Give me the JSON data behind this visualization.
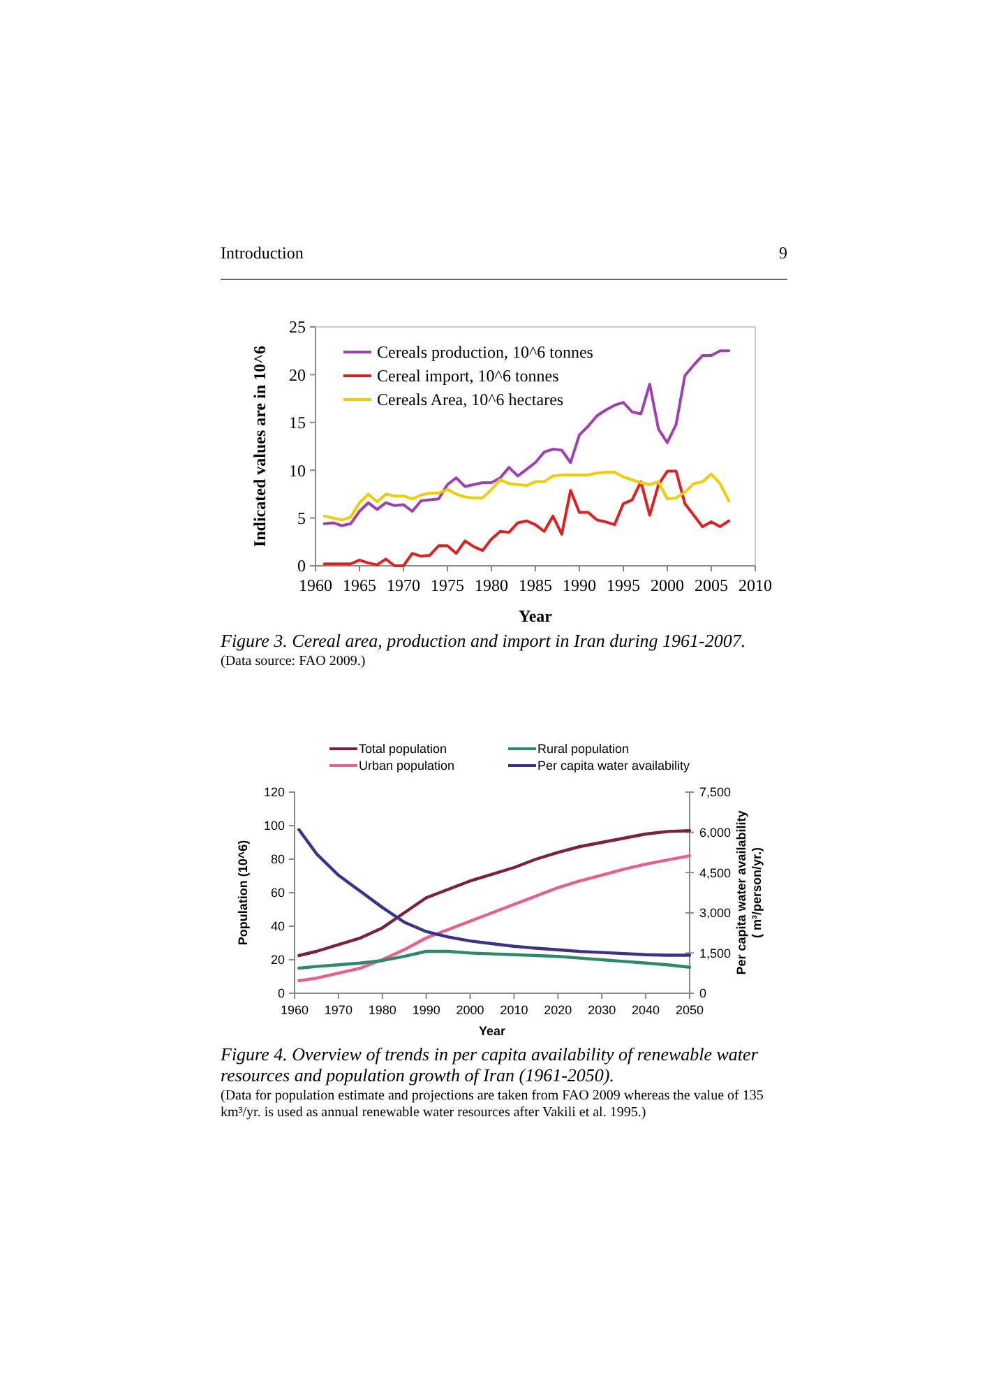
{
  "chart_data": [
    {
      "type": "line",
      "title": "Figure 3.  Cereal area, production and import in Iran during 1961-2007.",
      "xlabel": "Year",
      "ylabel": "Indicated values are in 10^6",
      "annotations": [
        "Introduction",
        "9",
        "(Data source: FAO 2009.)"
      ],
      "x": [
        1961,
        1962,
        1963,
        1964,
        1965,
        1966,
        1967,
        1968,
        1969,
        1970,
        1971,
        1972,
        1973,
        1974,
        1975,
        1976,
        1977,
        1978,
        1979,
        1980,
        1981,
        1982,
        1983,
        1984,
        1985,
        1986,
        1987,
        1988,
        1989,
        1990,
        1991,
        1992,
        1993,
        1994,
        1995,
        1996,
        1997,
        1998,
        1999,
        2000,
        2001,
        2002,
        2003,
        2004,
        2005,
        2006,
        2007
      ],
      "series": [
        {
          "name": "Cereals production, 10^6 tonnes",
          "color": "#a040b0",
          "values": [
            4.4,
            4.5,
            4.2,
            4.4,
            5.7,
            6.6,
            5.9,
            6.6,
            6.3,
            6.4,
            5.7,
            6.8,
            6.9,
            7.0,
            8.5,
            9.2,
            8.3,
            8.5,
            8.7,
            8.7,
            9.2,
            10.3,
            9.4,
            10.1,
            10.8,
            11.9,
            12.2,
            12.1,
            10.8,
            13.7,
            14.6,
            15.7,
            16.3,
            16.8,
            17.1,
            16.1,
            15.9,
            19.0,
            14.3,
            12.9,
            14.8,
            19.9,
            21.0,
            22.0,
            22.0,
            22.5,
            22.5
          ]
        },
        {
          "name": "Cereal import, 10^6 tonnes",
          "color": "#e02020",
          "values": [
            0.2,
            0.2,
            0.2,
            0.2,
            0.6,
            0.3,
            0.1,
            0.7,
            0.0,
            0.0,
            1.3,
            1.0,
            1.1,
            2.1,
            2.1,
            1.3,
            2.6,
            2.0,
            1.6,
            2.8,
            3.6,
            3.5,
            4.5,
            4.7,
            4.3,
            3.6,
            5.2,
            3.3,
            7.9,
            5.6,
            5.6,
            4.8,
            4.6,
            4.3,
            6.5,
            6.9,
            8.8,
            5.3,
            8.5,
            9.9,
            9.9,
            6.5,
            5.3,
            4.1,
            4.6,
            4.1,
            4.7
          ]
        },
        {
          "name": "Cereals Area, 10^6 hectares",
          "color": "#f0cc00",
          "values": [
            5.2,
            5.0,
            4.8,
            5.1,
            6.6,
            7.5,
            6.7,
            7.5,
            7.3,
            7.3,
            7.0,
            7.4,
            7.6,
            7.6,
            8.0,
            7.5,
            7.2,
            7.1,
            7.1,
            8.0,
            9.0,
            8.6,
            8.5,
            8.4,
            8.8,
            8.8,
            9.4,
            9.5,
            9.5,
            9.5,
            9.5,
            9.7,
            9.8,
            9.8,
            9.3,
            9.0,
            8.7,
            8.5,
            8.8,
            7.0,
            7.1,
            7.7,
            8.6,
            8.8,
            9.6,
            8.6,
            6.8
          ]
        }
      ],
      "xlim": [
        1960,
        2010
      ],
      "xticks": [
        1960,
        1965,
        1970,
        1975,
        1980,
        1985,
        1990,
        1995,
        2000,
        2005,
        2010
      ],
      "ylim": [
        0,
        25
      ],
      "yticks": [
        0,
        5,
        10,
        15,
        20,
        25
      ],
      "grid": false,
      "legend": "top left"
    },
    {
      "type": "line",
      "title": "Figure 4.  Overview of trends in per capita availability of renewable water resources and population growth of Iran (1961-2050).",
      "xlabel": "Year",
      "ylabel": "Population (10^6)",
      "y2label": "Per capita water availability\n( m³/person/yr.)",
      "annotations": [
        "(Data for population estimate and projections are taken from FAO 2009 whereas the value of 135 km³/yr. is used as annual renewable water resources after Vakili et al. 1995.)"
      ],
      "x": [
        1961,
        1965,
        1970,
        1975,
        1980,
        1985,
        1990,
        1995,
        2000,
        2005,
        2010,
        2015,
        2020,
        2025,
        2030,
        2035,
        2040,
        2045,
        2050
      ],
      "series": [
        {
          "name": "Total population",
          "color": "#7b2040",
          "values": [
            22.5,
            25,
            29,
            33,
            39,
            48,
            57,
            62,
            67,
            71,
            75,
            80,
            84,
            87.5,
            90,
            92.5,
            95,
            96.5,
            97
          ]
        },
        {
          "name": "Urban population",
          "color": "#e8608a",
          "values": [
            7.5,
            9,
            12,
            15,
            20,
            26,
            33,
            38,
            43,
            48,
            53,
            58,
            63,
            67,
            70.5,
            74,
            77,
            79.5,
            82
          ]
        },
        {
          "name": "Rural population",
          "color": "#2a8a6a",
          "values": [
            15,
            16,
            17,
            18,
            19.5,
            22,
            25,
            25,
            24,
            23.5,
            23,
            22.5,
            22,
            21,
            20,
            19,
            18,
            17,
            15.5
          ]
        },
        {
          "name": "Per capita water availability",
          "color": "#3a3090",
          "axis": "y2",
          "values": [
            6100,
            5200,
            4400,
            3800,
            3200,
            2650,
            2300,
            2100,
            1950,
            1850,
            1750,
            1680,
            1620,
            1560,
            1520,
            1480,
            1440,
            1420,
            1420
          ]
        }
      ],
      "xlim": [
        1960,
        2050
      ],
      "xticks": [
        1960,
        1970,
        1980,
        1990,
        2000,
        2010,
        2020,
        2030,
        2040,
        2050
      ],
      "ylim": [
        0,
        120
      ],
      "yticks": [
        0,
        20,
        40,
        60,
        80,
        100,
        120
      ],
      "y2lim": [
        0,
        7500
      ],
      "y2ticks": [
        0,
        {
          "value": 1500,
          "label": "1,500"
        },
        {
          "value": 3000,
          "label": "3,000"
        },
        {
          "value": 4500,
          "label": "4,500"
        },
        {
          "value": 6000,
          "label": "6,000"
        },
        {
          "value": 7500,
          "label": "7,500"
        }
      ],
      "grid": false,
      "legend": "top"
    }
  ]
}
